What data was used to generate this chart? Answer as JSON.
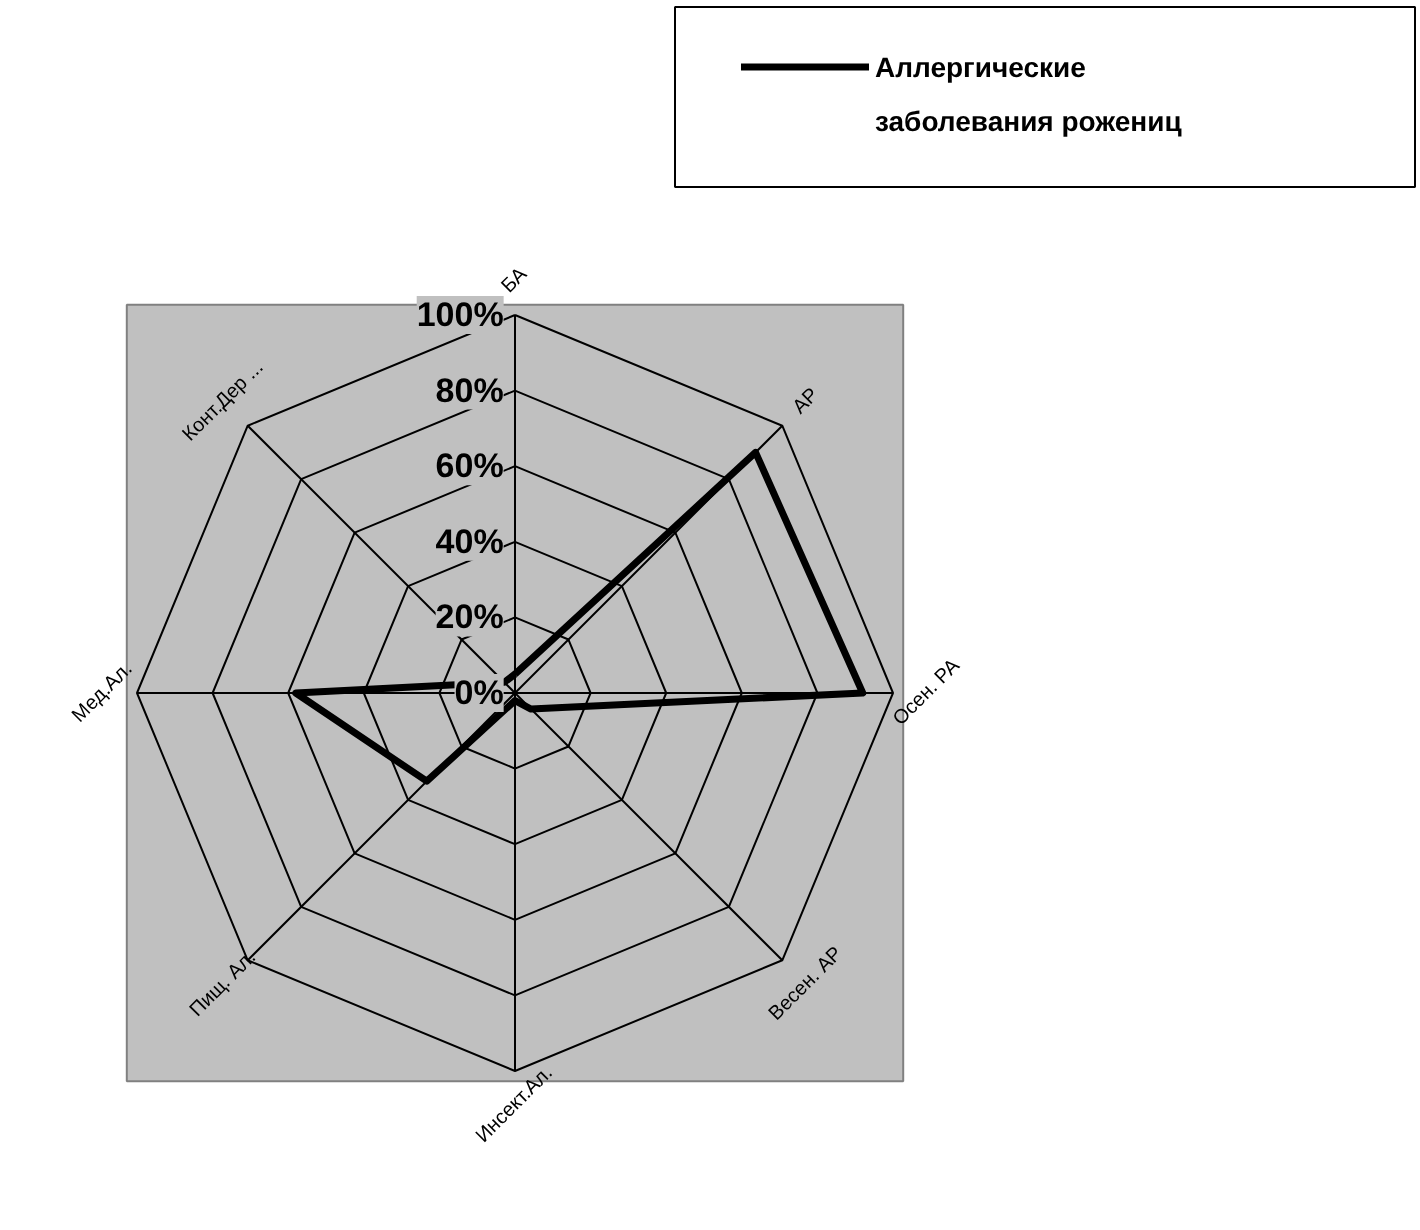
{
  "chart_data": {
    "type": "radar",
    "categories": [
      "БА",
      "АР",
      "Осен. РА",
      "Весен. АР",
      "Инсект.Ал.",
      "Пищ. Ал.",
      "Мед.Ал.",
      "Конт.Дер ..."
    ],
    "series": [
      {
        "name": "Аллергические заболевания рожениц",
        "color": "#000000",
        "values": [
          5,
          90,
          92,
          6,
          2,
          33,
          58,
          4
        ]
      }
    ],
    "ylim": [
      0,
      100
    ],
    "yticks": [
      {
        "value": 0,
        "label": "0%"
      },
      {
        "value": 20,
        "label": "20%"
      },
      {
        "value": 40,
        "label": "40%"
      },
      {
        "value": 60,
        "label": "60%"
      },
      {
        "value": 80,
        "label": "80%"
      },
      {
        "value": 100,
        "label": "100%"
      }
    ],
    "grid": true,
    "legend": "top right",
    "marker": "none",
    "line_style": "solid"
  }
}
